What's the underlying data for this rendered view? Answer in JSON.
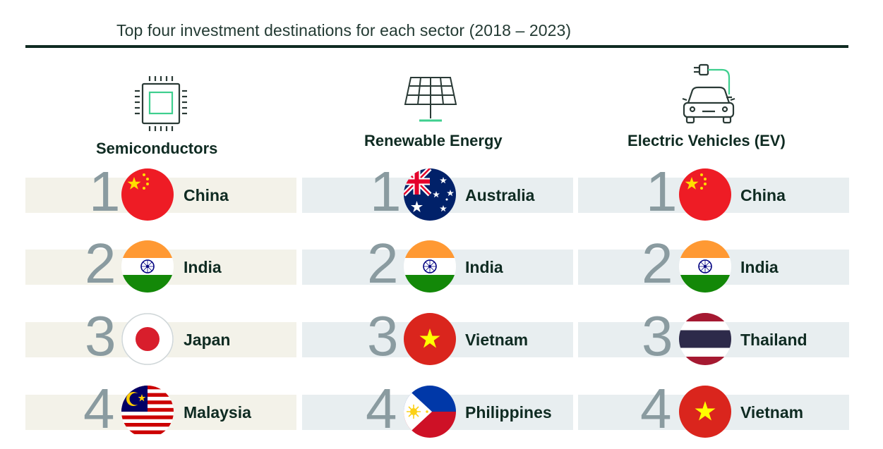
{
  "header": {
    "title": "Top four investment destinations for each sector (2018 – 2023)"
  },
  "colors": {
    "rule": "#0f2b22",
    "band_semiconductors": "#f3f2e9",
    "band_renewable": "#e8eef0",
    "band_ev": "#e8eef0",
    "icon_accent": "#3ecf8e",
    "rank_number": "#8a9ba0"
  },
  "sectors": [
    {
      "name": "Semiconductors",
      "icon": "microchip-icon",
      "rows": [
        {
          "rank": "1",
          "country": "China",
          "flag": "china-flag-icon"
        },
        {
          "rank": "2",
          "country": "India",
          "flag": "india-flag-icon"
        },
        {
          "rank": "3",
          "country": "Japan",
          "flag": "japan-flag-icon"
        },
        {
          "rank": "4",
          "country": "Malaysia",
          "flag": "malaysia-flag-icon"
        }
      ]
    },
    {
      "name": "Renewable Energy",
      "icon": "solar-panel-icon",
      "rows": [
        {
          "rank": "1",
          "country": "Australia",
          "flag": "australia-flag-icon"
        },
        {
          "rank": "2",
          "country": "India",
          "flag": "india-flag-icon"
        },
        {
          "rank": "3",
          "country": "Vietnam",
          "flag": "vietnam-flag-icon"
        },
        {
          "rank": "4",
          "country": "Philippines",
          "flag": "philippines-flag-icon"
        }
      ]
    },
    {
      "name": "Electric Vehicles (EV)",
      "icon": "electric-car-icon",
      "rows": [
        {
          "rank": "1",
          "country": "China",
          "flag": "china-flag-icon"
        },
        {
          "rank": "2",
          "country": "India",
          "flag": "india-flag-icon"
        },
        {
          "rank": "3",
          "country": "Thailand",
          "flag": "thailand-flag-icon"
        },
        {
          "rank": "4",
          "country": "Vietnam",
          "flag": "vietnam-flag-icon"
        }
      ]
    }
  ]
}
